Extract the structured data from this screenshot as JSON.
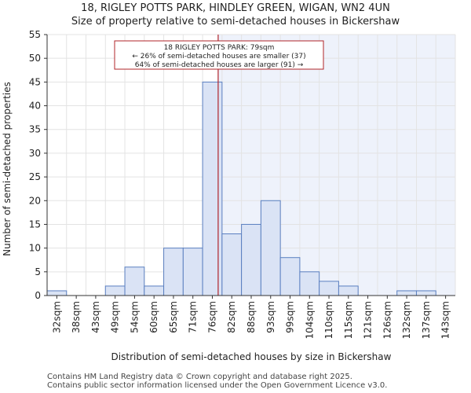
{
  "chart_data": {
    "type": "bar",
    "title": "18, RIGLEY POTTS PARK, HINDLEY GREEN, WIGAN, WN2 4UN",
    "subtitle": "Size of property relative to semi-detached houses in Bickershaw",
    "xlabel": "Distribution of semi-detached houses by size in Bickershaw",
    "ylabel": "Number of semi-detached properties",
    "ylim": [
      0,
      55
    ],
    "yticks": [
      0,
      5,
      10,
      15,
      20,
      25,
      30,
      35,
      40,
      45,
      50,
      55
    ],
    "categories": [
      "32sqm",
      "38sqm",
      "43sqm",
      "49sqm",
      "54sqm",
      "60sqm",
      "65sqm",
      "71sqm",
      "76sqm",
      "82sqm",
      "88sqm",
      "93sqm",
      "99sqm",
      "104sqm",
      "110sqm",
      "115sqm",
      "121sqm",
      "126sqm",
      "132sqm",
      "137sqm",
      "143sqm"
    ],
    "values": [
      1,
      0,
      0,
      2,
      6,
      2,
      10,
      10,
      45,
      13,
      15,
      20,
      8,
      5,
      3,
      2,
      0,
      0,
      1,
      1,
      0
    ],
    "property_marker": {
      "value_sqm": 79,
      "bin_position": 8.8
    },
    "annotation": [
      "18 RIGLEY POTTS PARK: 79sqm",
      "← 26% of semi-detached houses are smaller (37)",
      "64% of semi-detached houses are larger (91) →"
    ],
    "colors": {
      "bar_fill": "#dae3f5",
      "bar_stroke": "#5a7fc0",
      "marker": "#b0242a",
      "highlight_bg": "#eef2fb",
      "grid": "#e3e3e3"
    }
  },
  "footer": {
    "line1": "Contains HM Land Registry data © Crown copyright and database right 2025.",
    "line2": "Contains public sector information licensed under the Open Government Licence v3.0."
  }
}
